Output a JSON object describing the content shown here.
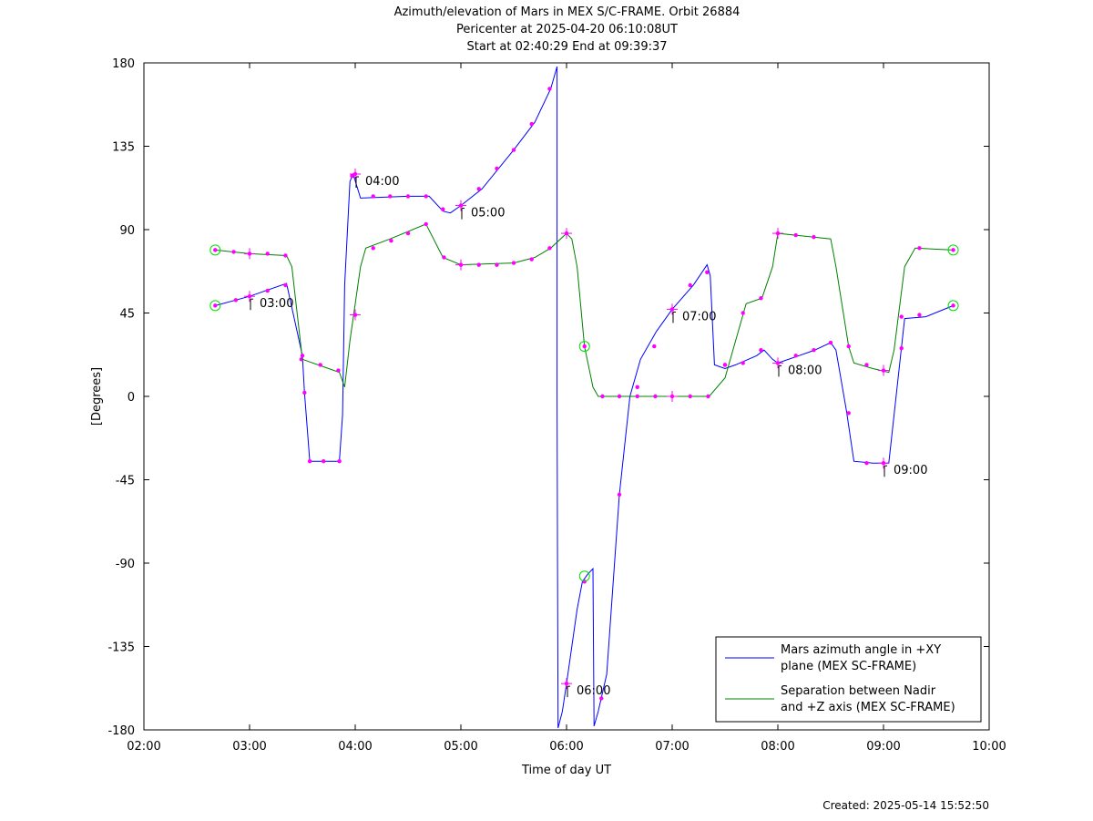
{
  "title": {
    "line1": "Azimuth/elevation of Mars in MEX S/C-FRAME.  Orbit 26884",
    "line2": "Pericenter at 2025-04-20 06:10:08UT",
    "line3": "Start at 02:40:29 End at 09:39:37"
  },
  "created": "Created: 2025-05-14 15:52:50",
  "chart_data": {
    "type": "line",
    "xlabel": "Time of day UT",
    "ylabel": "[Degrees]",
    "xlim": [
      2.0,
      10.0
    ],
    "ylim": [
      -180,
      180
    ],
    "x_ticks": [
      2,
      3,
      4,
      5,
      6,
      7,
      8,
      9,
      10
    ],
    "x_tick_labels": [
      "02:00",
      "03:00",
      "04:00",
      "05:00",
      "06:00",
      "07:00",
      "08:00",
      "09:00",
      "10:00"
    ],
    "y_ticks": [
      180,
      135,
      90,
      45,
      0,
      -45,
      -90,
      -135,
      -180
    ],
    "y_tick_labels": [
      "180",
      "135",
      "90",
      "45",
      "0",
      "-45",
      "-90",
      "-135",
      "-180"
    ],
    "grid": false,
    "legend_position": "bottom-right",
    "series": [
      {
        "name": "Mars azimuth angle in +XY plane (MEX SC-FRAME)",
        "legend_lines": [
          "Mars azimuth angle in +XY",
          "plane (MEX SC-FRAME)"
        ],
        "color": "#0000ff",
        "points": [
          [
            2.675,
            49
          ],
          [
            3.0,
            54
          ],
          [
            3.35,
            61
          ],
          [
            3.5,
            22
          ],
          [
            3.52,
            2
          ],
          [
            3.57,
            -35
          ],
          [
            3.85,
            -35
          ],
          [
            3.88,
            -10
          ],
          [
            3.9,
            60
          ],
          [
            3.95,
            116
          ],
          [
            3.98,
            120
          ],
          [
            4.05,
            107
          ],
          [
            4.5,
            108
          ],
          [
            4.7,
            108
          ],
          [
            4.83,
            100
          ],
          [
            4.9,
            99
          ],
          [
            5.0,
            103
          ],
          [
            5.2,
            112
          ],
          [
            5.5,
            133
          ],
          [
            5.7,
            148
          ],
          [
            5.85,
            166
          ],
          [
            5.91,
            178
          ],
          [
            5.9105,
            0
          ],
          [
            5.915,
            -90
          ],
          [
            5.92,
            -179
          ],
          [
            5.96,
            -170
          ],
          [
            6.0,
            -155
          ],
          [
            6.1,
            -115
          ],
          [
            6.15,
            -100
          ],
          [
            6.2,
            -96
          ],
          [
            6.25,
            -93
          ],
          [
            6.26,
            -178
          ],
          [
            6.3,
            -170
          ],
          [
            6.38,
            -150
          ],
          [
            6.5,
            -53
          ],
          [
            6.6,
            0
          ],
          [
            6.7,
            20
          ],
          [
            6.85,
            35
          ],
          [
            7.0,
            47
          ],
          [
            7.2,
            60
          ],
          [
            7.33,
            71
          ],
          [
            7.36,
            65
          ],
          [
            7.4,
            17
          ],
          [
            7.5,
            15
          ],
          [
            7.6,
            17
          ],
          [
            7.8,
            22
          ],
          [
            7.87,
            25
          ],
          [
            7.95,
            20
          ],
          [
            8.0,
            18
          ],
          [
            8.2,
            22
          ],
          [
            8.35,
            25
          ],
          [
            8.5,
            29
          ],
          [
            8.55,
            25
          ],
          [
            8.65,
            -8
          ],
          [
            8.72,
            -35
          ],
          [
            8.9,
            -36
          ],
          [
            9.05,
            -36
          ],
          [
            9.1,
            -10
          ],
          [
            9.2,
            42
          ],
          [
            9.4,
            43
          ],
          [
            9.66,
            49
          ]
        ],
        "markers": [
          [
            2.675,
            49
          ],
          [
            2.87,
            52
          ],
          [
            3.0,
            54
          ],
          [
            3.17,
            57
          ],
          [
            3.34,
            60
          ],
          [
            3.49,
            20
          ],
          [
            3.52,
            2
          ],
          [
            3.57,
            -35
          ],
          [
            3.7,
            -35
          ],
          [
            3.85,
            -35
          ],
          [
            3.97,
            119
          ],
          [
            4.0,
            120
          ],
          [
            4.17,
            108
          ],
          [
            4.33,
            108
          ],
          [
            4.5,
            108
          ],
          [
            4.67,
            108
          ],
          [
            4.83,
            101
          ],
          [
            5.0,
            103
          ],
          [
            5.17,
            112
          ],
          [
            5.34,
            123
          ],
          [
            5.5,
            133
          ],
          [
            5.67,
            147
          ],
          [
            5.84,
            166
          ],
          [
            6.0,
            -155
          ],
          [
            6.17,
            -100
          ],
          [
            6.33,
            -163
          ],
          [
            6.5,
            -53
          ],
          [
            6.67,
            5
          ],
          [
            6.83,
            27
          ],
          [
            7.0,
            47
          ],
          [
            7.17,
            60
          ],
          [
            7.33,
            67
          ],
          [
            7.5,
            17
          ],
          [
            7.67,
            18
          ],
          [
            7.84,
            25
          ],
          [
            8.0,
            18
          ],
          [
            8.17,
            22
          ],
          [
            8.34,
            25
          ],
          [
            8.5,
            29
          ],
          [
            8.67,
            -9
          ],
          [
            8.84,
            -36
          ],
          [
            9.0,
            -36
          ],
          [
            9.17,
            43
          ],
          [
            9.34,
            44
          ],
          [
            9.66,
            49
          ]
        ]
      },
      {
        "name": "Separation between Nadir and +Z axis (MEX SC-FRAME)",
        "legend_lines": [
          "Separation between Nadir",
          "and +Z axis (MEX SC-FRAME)"
        ],
        "color": "#008000",
        "points": [
          [
            2.675,
            79
          ],
          [
            3.0,
            77
          ],
          [
            3.35,
            76
          ],
          [
            3.4,
            70
          ],
          [
            3.5,
            20
          ],
          [
            3.7,
            16
          ],
          [
            3.85,
            13
          ],
          [
            3.9,
            5
          ],
          [
            3.95,
            30
          ],
          [
            4.05,
            70
          ],
          [
            4.1,
            80
          ],
          [
            4.33,
            85
          ],
          [
            4.67,
            93
          ],
          [
            4.83,
            75
          ],
          [
            5.0,
            71
          ],
          [
            5.5,
            72
          ],
          [
            5.7,
            75
          ],
          [
            5.85,
            80
          ],
          [
            6.0,
            88
          ],
          [
            6.05,
            85
          ],
          [
            6.1,
            70
          ],
          [
            6.17,
            27
          ],
          [
            6.25,
            5
          ],
          [
            6.3,
            0
          ],
          [
            7.0,
            0
          ],
          [
            7.35,
            0
          ],
          [
            7.5,
            10
          ],
          [
            7.6,
            30
          ],
          [
            7.7,
            50
          ],
          [
            7.85,
            53
          ],
          [
            7.95,
            70
          ],
          [
            8.0,
            88
          ],
          [
            8.5,
            85
          ],
          [
            8.55,
            70
          ],
          [
            8.67,
            27
          ],
          [
            8.72,
            18
          ],
          [
            8.9,
            15
          ],
          [
            9.05,
            13
          ],
          [
            9.1,
            25
          ],
          [
            9.2,
            70
          ],
          [
            9.3,
            80
          ],
          [
            9.66,
            79
          ]
        ],
        "markers": [
          [
            2.675,
            79
          ],
          [
            2.85,
            78
          ],
          [
            3.0,
            77
          ],
          [
            3.17,
            77
          ],
          [
            3.34,
            76
          ],
          [
            3.5,
            22
          ],
          [
            3.67,
            17
          ],
          [
            3.84,
            14
          ],
          [
            4.0,
            44
          ],
          [
            4.17,
            80
          ],
          [
            4.34,
            84
          ],
          [
            4.5,
            88
          ],
          [
            4.67,
            93
          ],
          [
            4.84,
            75
          ],
          [
            5.0,
            71
          ],
          [
            5.17,
            71
          ],
          [
            5.34,
            71
          ],
          [
            5.5,
            72
          ],
          [
            5.67,
            74
          ],
          [
            5.84,
            80
          ],
          [
            6.0,
            88
          ],
          [
            6.17,
            27
          ],
          [
            6.34,
            0
          ],
          [
            6.5,
            0
          ],
          [
            6.67,
            0
          ],
          [
            6.84,
            0
          ],
          [
            7.0,
            0
          ],
          [
            7.17,
            0
          ],
          [
            7.34,
            0
          ],
          [
            7.5,
            17
          ],
          [
            7.67,
            45
          ],
          [
            7.84,
            53
          ],
          [
            8.0,
            88
          ],
          [
            8.17,
            87
          ],
          [
            8.34,
            86
          ],
          [
            8.67,
            27
          ],
          [
            8.84,
            17
          ],
          [
            9.0,
            14
          ],
          [
            9.17,
            26
          ],
          [
            9.34,
            80
          ],
          [
            9.66,
            79
          ]
        ]
      }
    ],
    "annotations": [
      {
        "label": "03:00",
        "x": 3.0,
        "y": 54,
        "series": 0
      },
      {
        "label": "04:00",
        "x": 4.0,
        "y": 120,
        "series": 0
      },
      {
        "label": "05:00",
        "x": 5.0,
        "y": 103,
        "series": 0
      },
      {
        "label": "06:00",
        "x": 6.0,
        "y": -155,
        "series": 0
      },
      {
        "label": "07:00",
        "x": 7.0,
        "y": 47,
        "series": 0
      },
      {
        "label": "08:00",
        "x": 8.0,
        "y": 18,
        "series": 0
      },
      {
        "label": "09:00",
        "x": 9.0,
        "y": -36,
        "series": 0
      }
    ],
    "circled_points": [
      [
        2.675,
        49
      ],
      [
        2.675,
        79
      ],
      [
        6.17,
        -97
      ],
      [
        6.17,
        27
      ],
      [
        9.66,
        49
      ],
      [
        9.66,
        79
      ]
    ],
    "green_cross_points": [
      [
        3.0,
        77
      ],
      [
        4.0,
        44
      ],
      [
        5.0,
        71
      ],
      [
        6.0,
        88
      ],
      [
        7.0,
        0
      ],
      [
        8.0,
        88
      ],
      [
        9.0,
        14
      ]
    ]
  }
}
